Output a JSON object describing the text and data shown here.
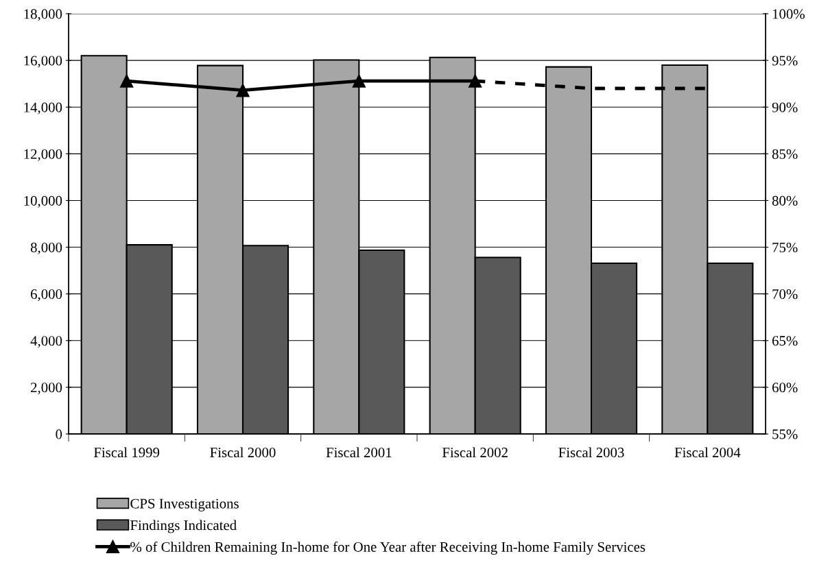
{
  "chart_data": {
    "type": "bar",
    "categories": [
      "Fiscal 1999",
      "Fiscal 2000",
      "Fiscal 2001",
      "Fiscal 2002",
      "Fiscal 2003",
      "Fiscal 2004"
    ],
    "series": [
      {
        "name": "CPS Investigations",
        "color": "#a6a6a6",
        "values": [
          16200,
          15780,
          16020,
          16130,
          15720,
          15800
        ]
      },
      {
        "name": "Findings Indicated",
        "color": "#595959",
        "values": [
          8100,
          8070,
          7870,
          7560,
          7310,
          7310
        ]
      },
      {
        "name": "% of Children Remaining In-home for One Year after Receiving In-home Family Services",
        "type": "line",
        "axis": "y2",
        "color": "#000000",
        "marker": "triangle",
        "line_style": "solid",
        "values": [
          92.8,
          91.8,
          92.8,
          92.8,
          null,
          null
        ]
      },
      {
        "type": "line",
        "axis": "y2",
        "color": "#000000",
        "marker": "none",
        "line_style": "dashed",
        "values": [
          null,
          null,
          null,
          92.8,
          92.0,
          92.0
        ]
      }
    ],
    "ylim": [
      0,
      18000
    ],
    "yticks": [
      {
        "value": 0,
        "label": "0"
      },
      {
        "value": 2000,
        "label": "2,000"
      },
      {
        "value": 4000,
        "label": "4,000"
      },
      {
        "value": 6000,
        "label": "6,000"
      },
      {
        "value": 8000,
        "label": "8,000"
      },
      {
        "value": 10000,
        "label": "10,000"
      },
      {
        "value": 12000,
        "label": "12,000"
      },
      {
        "value": 14000,
        "label": "14,000"
      },
      {
        "value": 16000,
        "label": "16,000"
      },
      {
        "value": 18000,
        "label": "18,000"
      }
    ],
    "y2lim": [
      55,
      100
    ],
    "y2ticks": [
      {
        "value": 55,
        "label": "55%"
      },
      {
        "value": 60,
        "label": "60%"
      },
      {
        "value": 65,
        "label": "65%"
      },
      {
        "value": 70,
        "label": "70%"
      },
      {
        "value": 75,
        "label": "75%"
      },
      {
        "value": 80,
        "label": "80%"
      },
      {
        "value": 85,
        "label": "85%"
      },
      {
        "value": 90,
        "label": "90%"
      },
      {
        "value": 95,
        "label": "95%"
      },
      {
        "value": 100,
        "label": "100%"
      }
    ],
    "grid": "y",
    "legend": "bottom"
  }
}
